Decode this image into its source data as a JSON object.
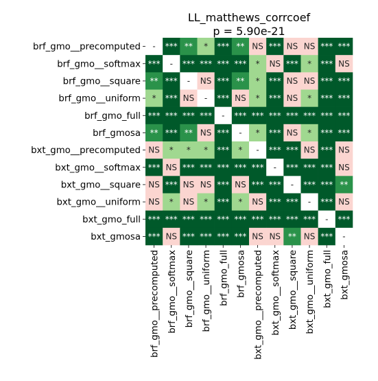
{
  "chart_data": {
    "type": "heatmap",
    "title": "LL_matthews_corrcoef",
    "subtitle": "p = 5.90e-21",
    "row_labels": [
      "brf_gmo__precomputed",
      "brf_gmo__softmax",
      "brf_gmo__square",
      "brf_gmo__uniform",
      "brf_gmo_full",
      "brf_gmosa",
      "bxt_gmo__precomputed",
      "bxt_gmo__softmax",
      "bxt_gmo__square",
      "bxt_gmo__uniform",
      "bxt_gmo_full",
      "bxt_gmosa"
    ],
    "col_labels": [
      "brf_gmo__precomputed",
      "brf_gmo__softmax",
      "brf_gmo__square",
      "brf_gmo__uniform",
      "brf_gmo_full",
      "brf_gmosa",
      "bxt_gmo__precomputed",
      "bxt_gmo__softmax",
      "bxt_gmo__square",
      "bxt_gmo__uniform",
      "bxt_gmo_full",
      "bxt_gmosa"
    ],
    "cells": [
      [
        "-",
        "***",
        "**",
        "*",
        "***",
        "**",
        "NS",
        "***",
        "NS",
        "NS",
        "***",
        "***"
      ],
      [
        "***",
        "-",
        "***",
        "***",
        "***",
        "***",
        "*",
        "NS",
        "***",
        "*",
        "***",
        "NS"
      ],
      [
        "**",
        "***",
        "-",
        "NS",
        "***",
        "**",
        "*",
        "***",
        "NS",
        "NS",
        "***",
        "***"
      ],
      [
        "*",
        "***",
        "NS",
        "-",
        "***",
        "NS",
        "*",
        "***",
        "NS",
        "*",
        "***",
        "***"
      ],
      [
        "***",
        "***",
        "***",
        "***",
        "-",
        "***",
        "***",
        "***",
        "***",
        "***",
        "***",
        "***"
      ],
      [
        "**",
        "***",
        "**",
        "NS",
        "***",
        "-",
        "*",
        "***",
        "NS",
        "*",
        "***",
        "***"
      ],
      [
        "NS",
        "*",
        "*",
        "*",
        "***",
        "*",
        "-",
        "***",
        "***",
        "NS",
        "***",
        "NS"
      ],
      [
        "***",
        "NS",
        "***",
        "***",
        "***",
        "***",
        "***",
        "-",
        "***",
        "***",
        "***",
        "NS"
      ],
      [
        "NS",
        "***",
        "NS",
        "NS",
        "***",
        "NS",
        "***",
        "***",
        "-",
        "***",
        "***",
        "**"
      ],
      [
        "NS",
        "*",
        "NS",
        "*",
        "***",
        "*",
        "NS",
        "***",
        "***",
        "-",
        "***",
        "NS"
      ],
      [
        "***",
        "***",
        "***",
        "***",
        "***",
        "***",
        "***",
        "***",
        "***",
        "***",
        "-",
        "***"
      ],
      [
        "***",
        "NS",
        "***",
        "***",
        "***",
        "***",
        "NS",
        "NS",
        "**",
        "NS",
        "***",
        "-"
      ]
    ],
    "colors": {
      "***": "#00592a",
      "**": "#2a924a",
      "*": "#a0d890",
      "NS": "#fbd5d0",
      "-": "#ffffff"
    },
    "text_colors": {
      "***": "#ffffff",
      "**": "#ffffff",
      "*": "#262626",
      "NS": "#262626",
      "-": "#262626"
    },
    "colorbar": false,
    "grid": false
  }
}
